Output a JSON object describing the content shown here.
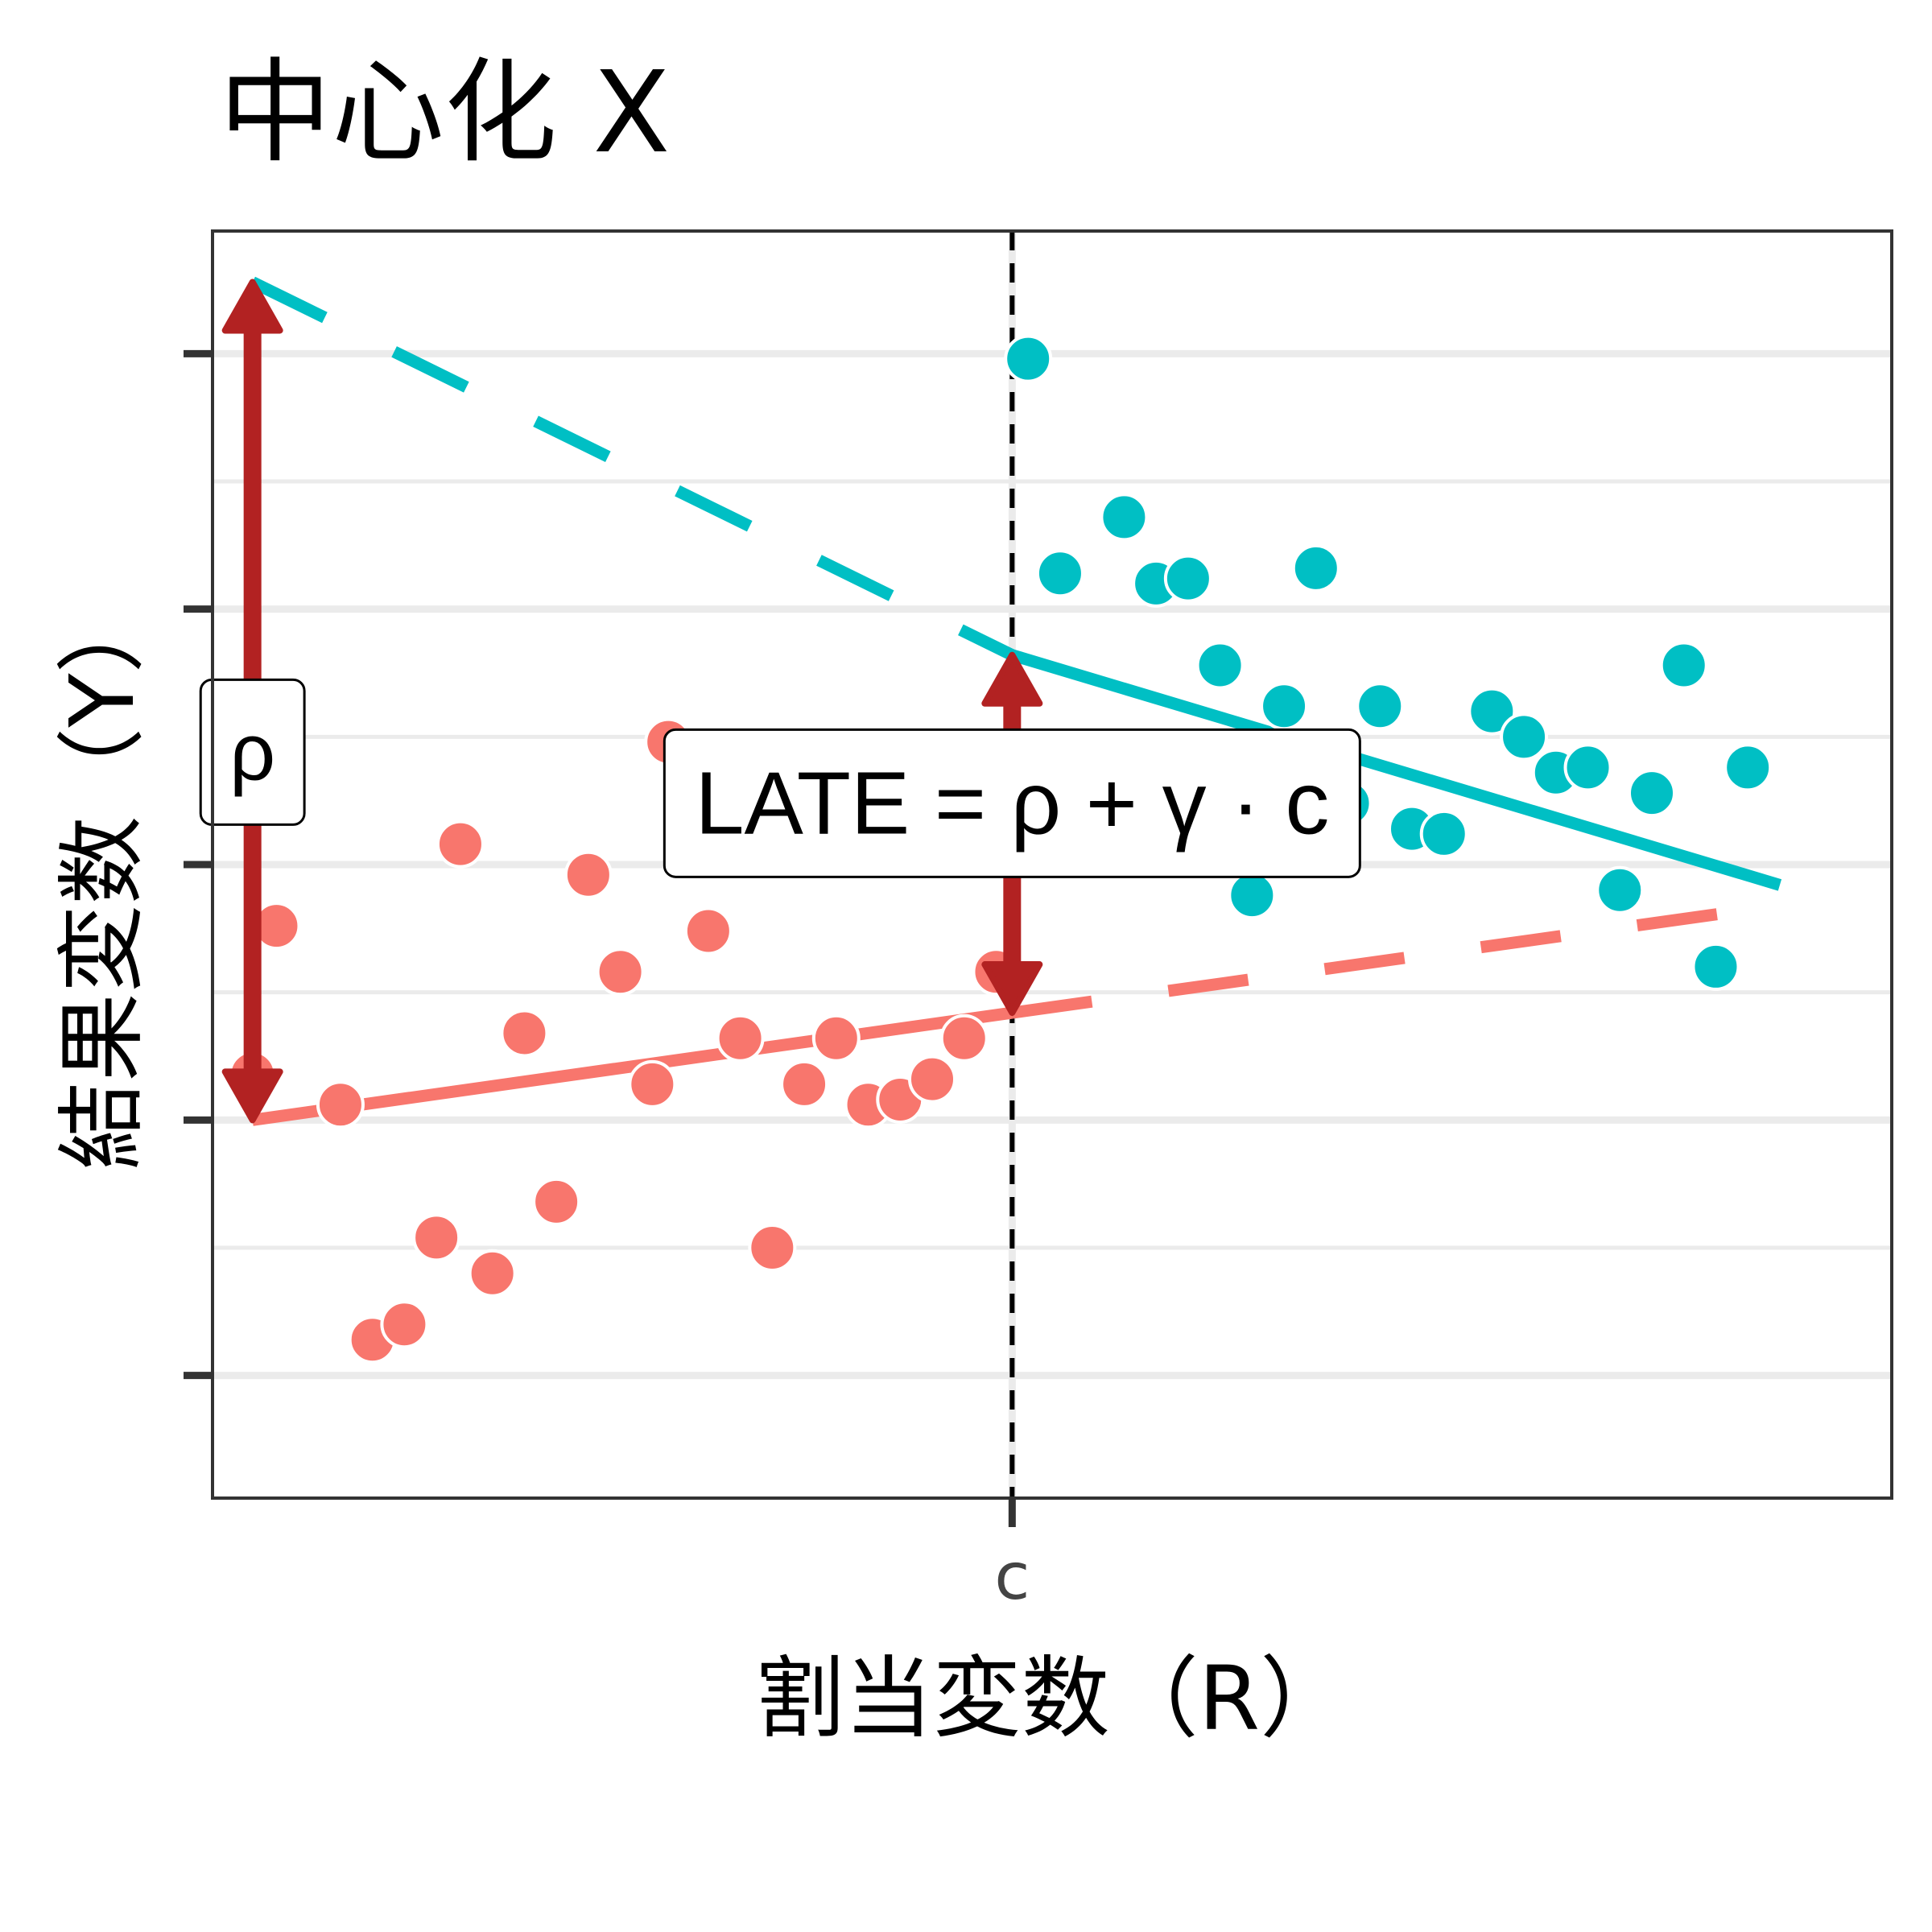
{
  "chart_data": {
    "type": "scatter",
    "title": "中心化 X",
    "xlabel": "割当変数（R）",
    "ylabel": "結果変数（Y）",
    "x_tick_labels": [
      {
        "x": 0,
        "label": "c"
      }
    ],
    "xlim": [
      -1.0,
      1.1
    ],
    "ylim": [
      -0.12,
      1.12
    ],
    "y_gridlines_major": [
      0.0,
      0.25,
      0.5,
      0.75,
      1.0
    ],
    "grid": true,
    "legend": "none",
    "colors": {
      "control": "#F8766D",
      "treated": "#00BFC4",
      "annotation": "#B22222",
      "cutoff": "#000000"
    },
    "series": [
      {
        "group": "control",
        "color": "#F8766D",
        "points": [
          [
            -0.95,
            0.295
          ],
          [
            -0.92,
            0.44
          ],
          [
            -0.84,
            0.265
          ],
          [
            -0.8,
            0.035
          ],
          [
            -0.76,
            0.05
          ],
          [
            -0.72,
            0.135
          ],
          [
            -0.69,
            0.52
          ],
          [
            -0.65,
            0.1
          ],
          [
            -0.61,
            0.335
          ],
          [
            -0.57,
            0.17
          ],
          [
            -0.53,
            0.49
          ],
          [
            -0.49,
            0.395
          ],
          [
            -0.45,
            0.285
          ],
          [
            -0.43,
            0.62
          ],
          [
            -0.38,
            0.435
          ],
          [
            -0.34,
            0.33
          ],
          [
            -0.3,
            0.125
          ],
          [
            -0.26,
            0.285
          ],
          [
            -0.22,
            0.33
          ],
          [
            -0.18,
            0.265
          ],
          [
            -0.14,
            0.27
          ],
          [
            -0.1,
            0.29
          ],
          [
            -0.06,
            0.33
          ],
          [
            -0.02,
            0.395
          ]
        ]
      },
      {
        "group": "treated",
        "color": "#00BFC4",
        "points": [
          [
            0.02,
            0.995
          ],
          [
            0.06,
            0.785
          ],
          [
            0.14,
            0.84
          ],
          [
            0.18,
            0.775
          ],
          [
            0.22,
            0.78
          ],
          [
            0.26,
            0.695
          ],
          [
            0.3,
            0.47
          ],
          [
            0.34,
            0.655
          ],
          [
            0.38,
            0.79
          ],
          [
            0.42,
            0.56
          ],
          [
            0.46,
            0.655
          ],
          [
            0.5,
            0.535
          ],
          [
            0.54,
            0.53
          ],
          [
            0.6,
            0.65
          ],
          [
            0.64,
            0.625
          ],
          [
            0.68,
            0.59
          ],
          [
            0.72,
            0.595
          ],
          [
            0.76,
            0.475
          ],
          [
            0.8,
            0.57
          ],
          [
            0.84,
            0.695
          ],
          [
            0.88,
            0.4
          ],
          [
            0.92,
            0.595
          ]
        ]
      }
    ],
    "fit_lines": [
      {
        "group": "control",
        "style": "solid",
        "x": [
          -0.95,
          0.0
        ],
        "y": [
          0.25,
          0.355
        ]
      },
      {
        "group": "control",
        "style": "dashed",
        "x": [
          0.0,
          0.96
        ],
        "y": [
          0.355,
          0.46
        ]
      },
      {
        "group": "treated",
        "style": "dashed",
        "x": [
          -0.95,
          0.0
        ],
        "y": [
          1.07,
          0.705
        ]
      },
      {
        "group": "treated",
        "style": "solid",
        "x": [
          0.0,
          0.96
        ],
        "y": [
          0.705,
          0.48
        ]
      }
    ],
    "cutoff": {
      "x": 0,
      "style": "dashed"
    },
    "annotations": [
      {
        "label": "ρ",
        "type": "double-arrow",
        "x": -0.95,
        "y_from": 0.25,
        "y_to": 1.07,
        "label_y": 0.61
      },
      {
        "label": "LATE = ρ + γ · c",
        "type": "double-arrow",
        "x": 0.0,
        "y_from": 0.355,
        "y_to": 0.705,
        "label_y": 0.56
      }
    ]
  }
}
